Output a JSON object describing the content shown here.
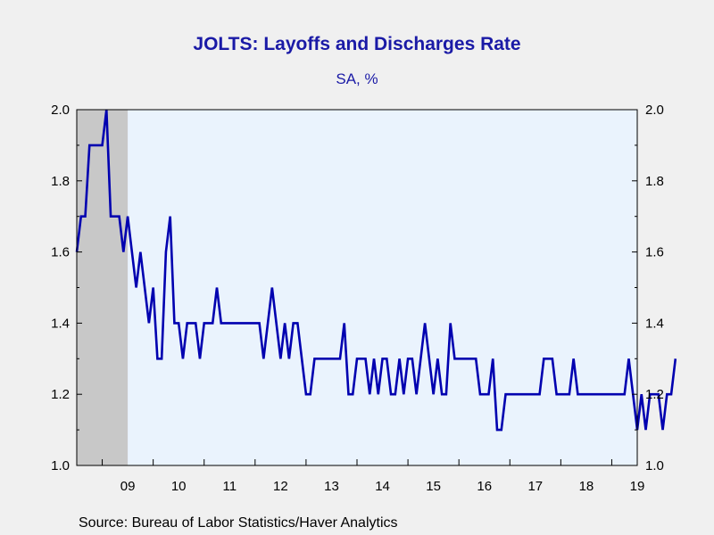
{
  "title": "JOLTS: Layoffs and Discharges Rate",
  "subtitle": "SA, %",
  "source": "Source:  Bureau of Labor Statistics/Haver Analytics",
  "colors": {
    "line": "#0000b0",
    "plot_background": "#eaf3fd",
    "recession": "#c8c8c8",
    "text_accent": "#1a1aa6"
  },
  "chart_data": {
    "type": "line",
    "title": "JOLTS: Layoffs and Discharges Rate",
    "subtitle": "SA, %",
    "ylim": [
      1.0,
      2.0
    ],
    "xlim": [
      "2008-07",
      "2019-07"
    ],
    "y_ticks": [
      "1.0",
      "1.2",
      "1.4",
      "1.6",
      "1.8",
      "2.0"
    ],
    "y_axis_right": true,
    "x_tick_labels": [
      "09",
      "10",
      "11",
      "12",
      "13",
      "14",
      "15",
      "16",
      "17",
      "18",
      "19"
    ],
    "grid": false,
    "recession_shading": {
      "start": "2008-07",
      "end": "2009-06"
    },
    "series": [
      {
        "x_start": "2008-07",
        "frequency": "monthly",
        "values": [
          1.6,
          1.7,
          1.7,
          1.9,
          1.9,
          1.9,
          1.9,
          2.0,
          1.7,
          1.7,
          1.7,
          1.6,
          1.7,
          1.6,
          1.5,
          1.6,
          1.5,
          1.4,
          1.5,
          1.3,
          1.3,
          1.6,
          1.7,
          1.4,
          1.4,
          1.3,
          1.4,
          1.4,
          1.4,
          1.3,
          1.4,
          1.4,
          1.4,
          1.5,
          1.4,
          1.4,
          1.4,
          1.4,
          1.4,
          1.4,
          1.4,
          1.4,
          1.4,
          1.4,
          1.3,
          1.4,
          1.5,
          1.4,
          1.3,
          1.4,
          1.3,
          1.4,
          1.4,
          1.3,
          1.2,
          1.2,
          1.3,
          1.3,
          1.3,
          1.3,
          1.3,
          1.3,
          1.3,
          1.4,
          1.2,
          1.2,
          1.3,
          1.3,
          1.3,
          1.2,
          1.3,
          1.2,
          1.3,
          1.3,
          1.2,
          1.2,
          1.3,
          1.2,
          1.3,
          1.3,
          1.2,
          1.3,
          1.4,
          1.3,
          1.2,
          1.3,
          1.2,
          1.2,
          1.4,
          1.3,
          1.3,
          1.3,
          1.3,
          1.3,
          1.3,
          1.2,
          1.2,
          1.2,
          1.3,
          1.1,
          1.1,
          1.2,
          1.2,
          1.2,
          1.2,
          1.2,
          1.2,
          1.2,
          1.2,
          1.2,
          1.3,
          1.3,
          1.3,
          1.2,
          1.2,
          1.2,
          1.2,
          1.3,
          1.2,
          1.2,
          1.2,
          1.2,
          1.2,
          1.2,
          1.2,
          1.2,
          1.2,
          1.2,
          1.2,
          1.2,
          1.3,
          1.2,
          1.1,
          1.2,
          1.1,
          1.2,
          1.2,
          1.2,
          1.1,
          1.2,
          1.2,
          1.3
        ]
      }
    ]
  }
}
